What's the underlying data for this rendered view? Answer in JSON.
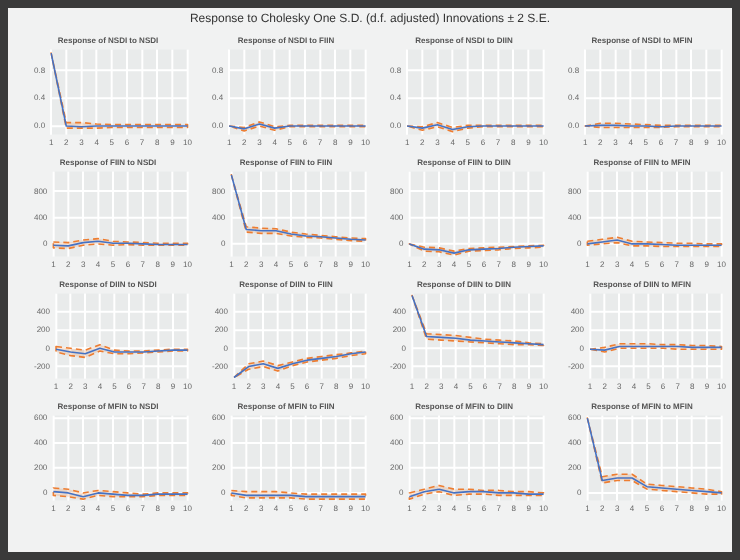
{
  "chart_data": [
    {
      "type": "line",
      "title": "Response of NSDI to NSDI",
      "annotations": [
        "Response to Cholesky One S.D. (d.f. adjusted) Innovations ± 2 S.E."
      ],
      "categories": [
        "1",
        "2",
        "3",
        "4",
        "5",
        "6",
        "7",
        "8",
        "9",
        "10"
      ],
      "ylim": [
        -0.12,
        1.1
      ],
      "yticks": [
        {
          "value": 0,
          "label": "0.0"
        },
        {
          "value": 0.4,
          "label": "0.4"
        },
        {
          "value": 0.8,
          "label": "0.8"
        }
      ],
      "grid": true,
      "legend": false,
      "marker": "none",
      "series": [
        {
          "color": "#4472c4",
          "values": [
            1.05,
            0.0,
            -0.01,
            0.0,
            0,
            0,
            0,
            0,
            0,
            0
          ],
          "upper": [
            1.05,
            0.05,
            0.05,
            0.03,
            0.02,
            0.02,
            0.02,
            0.02,
            0.02,
            0.02
          ],
          "lower": [
            1.05,
            -0.03,
            -0.03,
            -0.03,
            -0.02,
            -0.02,
            -0.02,
            -0.02,
            -0.02,
            -0.02
          ]
        }
      ]
    },
    {
      "type": "line",
      "title": "Response of NSDI to FIIN",
      "categories": [
        "1",
        "2",
        "3",
        "4",
        "5",
        "6",
        "7",
        "8",
        "9",
        "10"
      ],
      "ylim": [
        -0.12,
        1.1
      ],
      "yticks": [
        {
          "value": 0,
          "label": "0.0"
        },
        {
          "value": 0.4,
          "label": "0.4"
        },
        {
          "value": 0.8,
          "label": "0.8"
        }
      ],
      "grid": true,
      "legend": false,
      "marker": "none",
      "series": [
        {
          "color": "#4472c4",
          "values": [
            0,
            -0.04,
            0.03,
            -0.03,
            0,
            0,
            0,
            0,
            0,
            0
          ],
          "upper": [
            0,
            -0.02,
            0.06,
            -0.01,
            0.01,
            0.01,
            0.01,
            0.01,
            0.01,
            0.01
          ],
          "lower": [
            0,
            -0.07,
            0,
            -0.06,
            -0.01,
            -0.01,
            -0.01,
            -0.01,
            -0.01,
            -0.01
          ]
        }
      ]
    },
    {
      "type": "line",
      "title": "Response of NSDI to DIIN",
      "categories": [
        "1",
        "2",
        "3",
        "4",
        "5",
        "6",
        "7",
        "8",
        "9",
        "10"
      ],
      "ylim": [
        -0.12,
        1.1
      ],
      "yticks": [
        {
          "value": 0,
          "label": "0.0"
        },
        {
          "value": 0.4,
          "label": "0.4"
        },
        {
          "value": 0.8,
          "label": "0.8"
        }
      ],
      "grid": true,
      "legend": false,
      "marker": "none",
      "series": [
        {
          "color": "#4472c4",
          "values": [
            0,
            -0.03,
            0.02,
            -0.05,
            -0.01,
            0,
            0,
            0,
            0,
            0
          ],
          "upper": [
            0,
            -0.01,
            0.05,
            -0.02,
            0.01,
            0.01,
            0.01,
            0.01,
            0.01,
            0.01
          ],
          "lower": [
            0,
            -0.06,
            -0.01,
            -0.08,
            -0.03,
            -0.01,
            -0.01,
            -0.01,
            -0.01,
            -0.01
          ]
        }
      ]
    },
    {
      "type": "line",
      "title": "Response of NSDI to MFIN",
      "categories": [
        "1",
        "2",
        "3",
        "4",
        "5",
        "6",
        "7",
        "8",
        "9",
        "10"
      ],
      "ylim": [
        -0.12,
        1.1
      ],
      "yticks": [
        {
          "value": 0,
          "label": "0.0"
        },
        {
          "value": 0.4,
          "label": "0.4"
        },
        {
          "value": 0.8,
          "label": "0.8"
        }
      ],
      "grid": true,
      "legend": false,
      "marker": "none",
      "series": [
        {
          "color": "#4472c4",
          "values": [
            0,
            0.01,
            0.01,
            0,
            0,
            -0.01,
            0,
            0,
            0,
            0
          ],
          "upper": [
            0,
            0.04,
            0.04,
            0.03,
            0.02,
            0.01,
            0.01,
            0.01,
            0.01,
            0.01
          ],
          "lower": [
            0,
            -0.02,
            -0.02,
            -0.02,
            -0.02,
            -0.02,
            -0.01,
            -0.01,
            -0.01,
            -0.01
          ]
        }
      ]
    },
    {
      "type": "line",
      "title": "Response of FIIN to NSDI",
      "categories": [
        "1",
        "2",
        "3",
        "4",
        "5",
        "6",
        "7",
        "8",
        "9",
        "10"
      ],
      "ylim": [
        -190,
        1100
      ],
      "yticks": [
        0,
        400,
        800
      ],
      "grid": true,
      "legend": false,
      "marker": "none",
      "series": [
        {
          "color": "#4472c4",
          "values": [
            -20,
            -30,
            20,
            40,
            10,
            10,
            0,
            -10,
            -10,
            -10
          ],
          "upper": [
            30,
            20,
            60,
            80,
            40,
            30,
            20,
            10,
            10,
            10
          ],
          "lower": [
            -60,
            -70,
            -20,
            0,
            -20,
            -10,
            -20,
            -20,
            -20,
            -20
          ]
        }
      ]
    },
    {
      "type": "line",
      "title": "Response of FIIN to FIIN",
      "categories": [
        "1",
        "2",
        "3",
        "4",
        "5",
        "6",
        "7",
        "8",
        "9",
        "10"
      ],
      "ylim": [
        -190,
        1100
      ],
      "yticks": [
        0,
        400,
        800
      ],
      "grid": true,
      "legend": false,
      "marker": "none",
      "series": [
        {
          "color": "#4472c4",
          "values": [
            1050,
            220,
            200,
            200,
            150,
            120,
            110,
            90,
            70,
            60
          ],
          "upper": [
            1050,
            260,
            240,
            230,
            180,
            150,
            130,
            110,
            90,
            80
          ],
          "lower": [
            1050,
            180,
            160,
            160,
            120,
            100,
            90,
            70,
            50,
            40
          ]
        }
      ]
    },
    {
      "type": "line",
      "title": "Response of FIIN to DIIN",
      "categories": [
        "1",
        "2",
        "3",
        "4",
        "5",
        "6",
        "7",
        "8",
        "9",
        "10"
      ],
      "ylim": [
        -190,
        1100
      ],
      "yticks": [
        0,
        400,
        800
      ],
      "grid": true,
      "legend": false,
      "marker": "none",
      "series": [
        {
          "color": "#4472c4",
          "values": [
            0,
            -80,
            -90,
            -140,
            -90,
            -80,
            -70,
            -50,
            -40,
            -30
          ],
          "upper": [
            0,
            -50,
            -60,
            -110,
            -70,
            -60,
            -50,
            -40,
            -30,
            -20
          ],
          "lower": [
            0,
            -110,
            -120,
            -170,
            -110,
            -100,
            -90,
            -70,
            -60,
            -50
          ]
        }
      ]
    },
    {
      "type": "line",
      "title": "Response of FIIN to MFIN",
      "categories": [
        "1",
        "2",
        "3",
        "4",
        "5",
        "6",
        "7",
        "8",
        "9",
        "10"
      ],
      "ylim": [
        -190,
        1100
      ],
      "yticks": [
        0,
        400,
        800
      ],
      "grid": true,
      "legend": false,
      "marker": "none",
      "series": [
        {
          "color": "#4472c4",
          "values": [
            0,
            30,
            60,
            0,
            0,
            -10,
            -20,
            -20,
            -20,
            -20
          ],
          "upper": [
            40,
            70,
            100,
            40,
            30,
            20,
            10,
            10,
            0,
            0
          ],
          "lower": [
            -20,
            0,
            20,
            -30,
            -30,
            -40,
            -40,
            -40,
            -40,
            -40
          ]
        }
      ]
    },
    {
      "type": "line",
      "title": "Response of DIIN to NSDI",
      "categories": [
        "1",
        "2",
        "3",
        "4",
        "5",
        "6",
        "7",
        "8",
        "9",
        "10"
      ],
      "ylim": [
        -330,
        600
      ],
      "yticks": [
        -200,
        0,
        200,
        400
      ],
      "grid": true,
      "legend": false,
      "marker": "none",
      "series": [
        {
          "color": "#4472c4",
          "values": [
            -10,
            -40,
            -60,
            0,
            -40,
            -40,
            -40,
            -30,
            -20,
            -20
          ],
          "upper": [
            20,
            0,
            -20,
            40,
            -20,
            -30,
            -30,
            -20,
            -10,
            -10
          ],
          "lower": [
            -40,
            -80,
            -100,
            -30,
            -60,
            -60,
            -50,
            -40,
            -30,
            -30
          ]
        }
      ]
    },
    {
      "type": "line",
      "title": "Response of DIIN to FIIN",
      "categories": [
        "1",
        "2",
        "3",
        "4",
        "5",
        "6",
        "7",
        "8",
        "9",
        "10"
      ],
      "ylim": [
        -330,
        600
      ],
      "yticks": [
        -200,
        0,
        200,
        400
      ],
      "grid": true,
      "legend": false,
      "marker": "none",
      "series": [
        {
          "color": "#4472c4",
          "values": [
            -320,
            -200,
            -170,
            -220,
            -170,
            -130,
            -110,
            -90,
            -60,
            -40
          ],
          "upper": [
            -320,
            -170,
            -140,
            -190,
            -150,
            -110,
            -90,
            -70,
            -50,
            -30
          ],
          "lower": [
            -320,
            -230,
            -200,
            -250,
            -190,
            -150,
            -130,
            -110,
            -80,
            -60
          ]
        }
      ]
    },
    {
      "type": "line",
      "title": "Response of DIIN to DIIN",
      "categories": [
        "1",
        "2",
        "3",
        "4",
        "5",
        "6",
        "7",
        "8",
        "9",
        "10"
      ],
      "ylim": [
        -330,
        600
      ],
      "yticks": [
        -200,
        0,
        200,
        400
      ],
      "grid": true,
      "legend": false,
      "marker": "none",
      "series": [
        {
          "color": "#4472c4",
          "values": [
            580,
            130,
            120,
            110,
            90,
            80,
            70,
            60,
            50,
            40
          ],
          "upper": [
            580,
            160,
            150,
            140,
            120,
            100,
            90,
            80,
            60,
            50
          ],
          "lower": [
            580,
            100,
            90,
            80,
            70,
            60,
            50,
            40,
            40,
            30
          ]
        }
      ]
    },
    {
      "type": "line",
      "title": "Response of DIIN to MFIN",
      "categories": [
        "1",
        "2",
        "3",
        "4",
        "5",
        "6",
        "7",
        "8",
        "9",
        "10"
      ],
      "ylim": [
        -330,
        600
      ],
      "yticks": [
        -200,
        0,
        200,
        400
      ],
      "grid": true,
      "legend": false,
      "marker": "none",
      "series": [
        {
          "color": "#4472c4",
          "values": [
            -10,
            -20,
            20,
            20,
            20,
            20,
            20,
            10,
            10,
            10
          ],
          "upper": [
            -10,
            10,
            50,
            50,
            50,
            40,
            40,
            30,
            30,
            20
          ],
          "lower": [
            -10,
            -40,
            0,
            0,
            0,
            0,
            -10,
            -10,
            -10,
            -10
          ]
        }
      ]
    },
    {
      "type": "line",
      "title": "Response of MFIN to NSDI",
      "categories": [
        "1",
        "2",
        "3",
        "4",
        "5",
        "6",
        "7",
        "8",
        "9",
        "10"
      ],
      "ylim": [
        -60,
        620
      ],
      "yticks": [
        0,
        200,
        400,
        600
      ],
      "grid": true,
      "legend": false,
      "marker": "none",
      "series": [
        {
          "color": "#4472c4",
          "values": [
            10,
            0,
            -30,
            0,
            -10,
            -20,
            -20,
            -10,
            -10,
            -10
          ],
          "upper": [
            40,
            30,
            0,
            20,
            10,
            0,
            -10,
            0,
            0,
            0
          ],
          "lower": [
            -20,
            -30,
            -50,
            -20,
            -30,
            -30,
            -30,
            -20,
            -20,
            -20
          ]
        }
      ]
    },
    {
      "type": "line",
      "title": "Response of MFIN to FIIN",
      "categories": [
        "1",
        "2",
        "3",
        "4",
        "5",
        "6",
        "7",
        "8",
        "9",
        "10"
      ],
      "ylim": [
        -60,
        620
      ],
      "yticks": [
        0,
        200,
        400,
        600
      ],
      "grid": true,
      "legend": false,
      "marker": "none",
      "series": [
        {
          "color": "#4472c4",
          "values": [
            0,
            -20,
            -20,
            -20,
            -20,
            -30,
            -30,
            -30,
            -30,
            -30
          ],
          "upper": [
            20,
            10,
            10,
            10,
            0,
            -10,
            -10,
            -10,
            -10,
            -10
          ],
          "lower": [
            -20,
            -40,
            -40,
            -40,
            -40,
            -50,
            -50,
            -50,
            -50,
            -50
          ]
        }
      ]
    },
    {
      "type": "line",
      "title": "Response of MFIN to DIIN",
      "categories": [
        "1",
        "2",
        "3",
        "4",
        "5",
        "6",
        "7",
        "8",
        "9",
        "10"
      ],
      "ylim": [
        -60,
        620
      ],
      "yticks": [
        0,
        200,
        400,
        600
      ],
      "grid": true,
      "legend": false,
      "marker": "none",
      "series": [
        {
          "color": "#4472c4",
          "values": [
            -30,
            10,
            30,
            0,
            10,
            10,
            0,
            0,
            -10,
            -10
          ],
          "upper": [
            0,
            30,
            60,
            30,
            30,
            20,
            20,
            10,
            10,
            0
          ],
          "lower": [
            -50,
            -10,
            10,
            -20,
            -10,
            -10,
            -20,
            -20,
            -20,
            -20
          ]
        }
      ]
    },
    {
      "type": "line",
      "title": "Response of MFIN to MFIN",
      "categories": [
        "1",
        "2",
        "3",
        "4",
        "5",
        "6",
        "7",
        "8",
        "9",
        "10"
      ],
      "ylim": [
        -60,
        620
      ],
      "yticks": [
        0,
        200,
        400,
        600
      ],
      "grid": true,
      "legend": false,
      "marker": "none",
      "series": [
        {
          "color": "#4472c4",
          "values": [
            600,
            100,
            120,
            120,
            50,
            40,
            30,
            20,
            10,
            0
          ],
          "upper": [
            600,
            130,
            150,
            150,
            70,
            60,
            50,
            40,
            30,
            10
          ],
          "lower": [
            600,
            80,
            100,
            100,
            30,
            20,
            10,
            0,
            -10,
            -10
          ]
        }
      ]
    }
  ]
}
